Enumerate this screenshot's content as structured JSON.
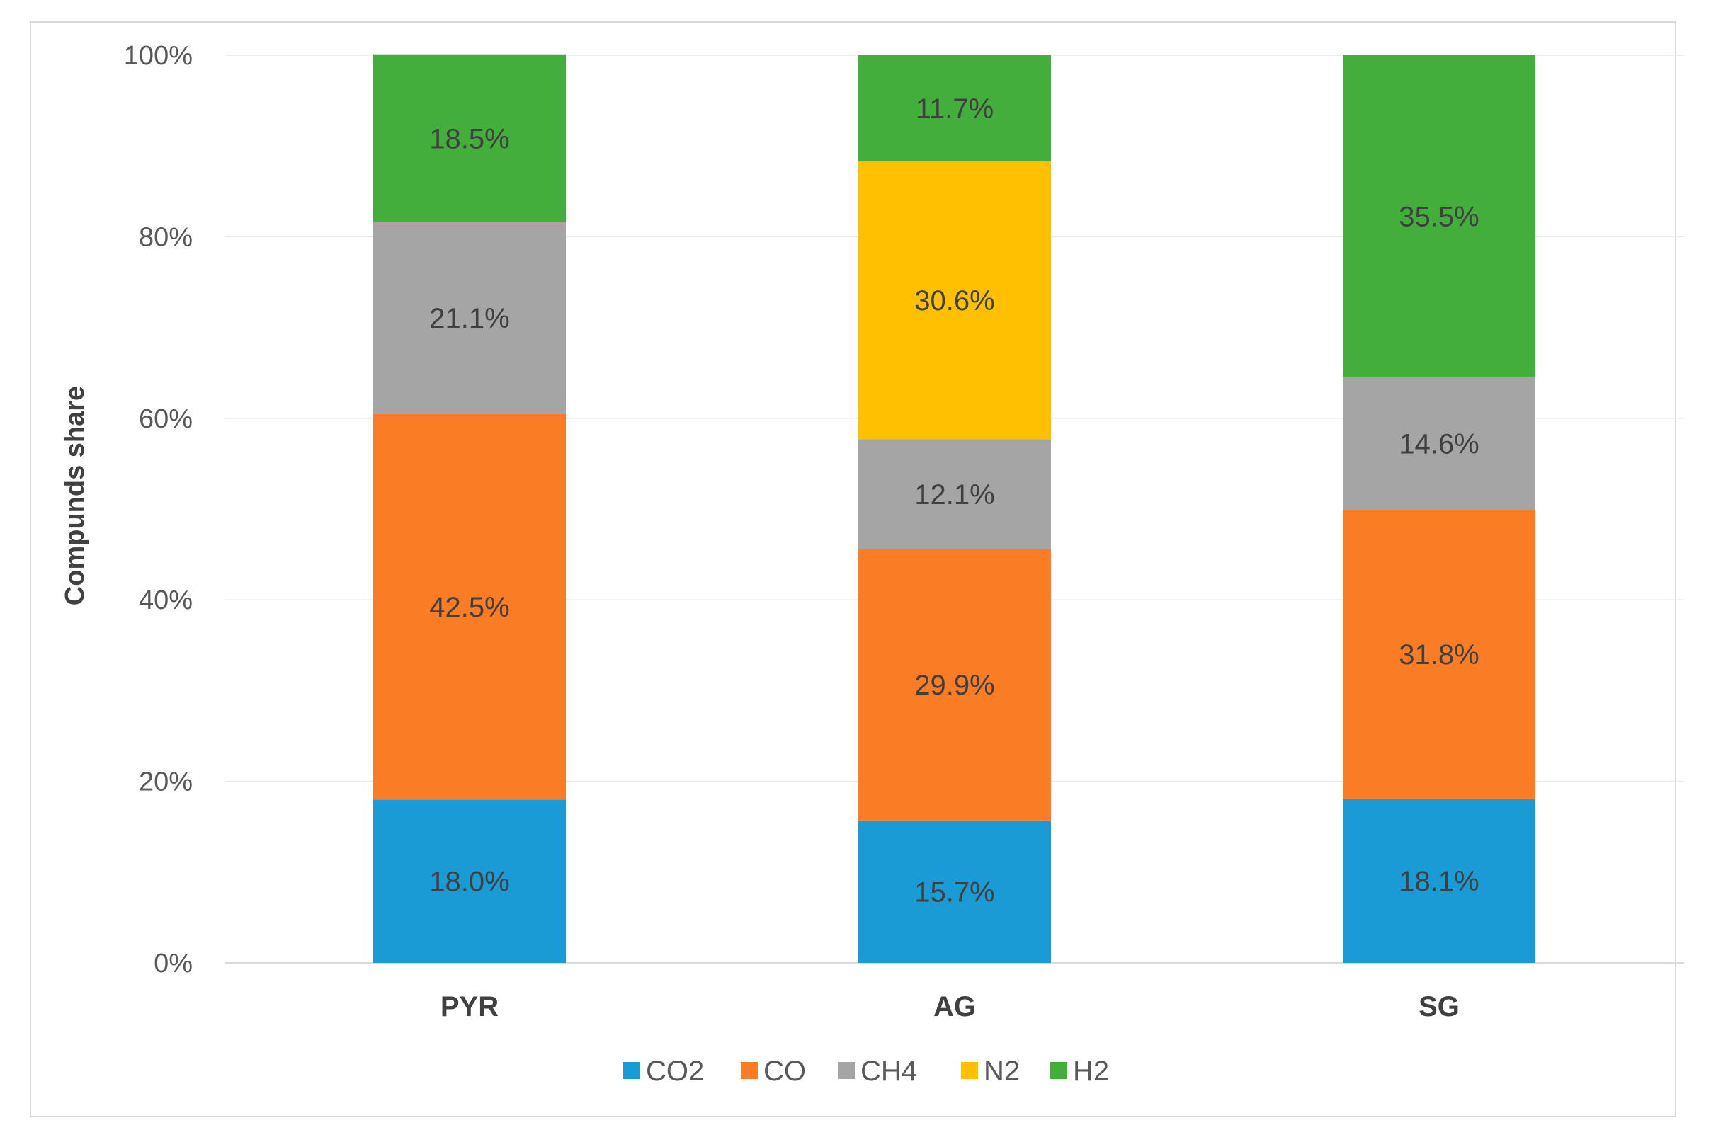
{
  "chart_data": {
    "type": "bar",
    "stacked": true,
    "title": "",
    "xlabel": "",
    "ylabel": "Compunds share",
    "ylim": [
      0,
      100
    ],
    "y_ticks": [
      "0%",
      "20%",
      "40%",
      "60%",
      "80%",
      "100%"
    ],
    "y_tick_values": [
      0,
      20,
      40,
      60,
      80,
      100
    ],
    "categories": [
      "PYR",
      "AG",
      "SG"
    ],
    "legend_position": "bottom",
    "series": [
      {
        "name": "CO2",
        "color": "#1b9bd6",
        "values": [
          18.0,
          15.7,
          18.1
        ],
        "labels": [
          "18.0%",
          "15.7%",
          "18.1%"
        ]
      },
      {
        "name": "CO",
        "color": "#fa7d26",
        "values": [
          42.5,
          29.9,
          31.8
        ],
        "labels": [
          "42.5%",
          "29.9%",
          "31.8%"
        ]
      },
      {
        "name": "CH4",
        "color": "#a5a5a5",
        "values": [
          21.1,
          12.1,
          14.6
        ],
        "labels": [
          "21.1%",
          "12.1%",
          "14.6%"
        ]
      },
      {
        "name": "N2",
        "color": "#fec000",
        "values": [
          0,
          30.6,
          0
        ],
        "labels": [
          "",
          "30.6%",
          ""
        ]
      },
      {
        "name": "H2",
        "color": "#43ae3b",
        "values": [
          18.5,
          11.7,
          35.5
        ],
        "labels": [
          "18.5%",
          "11.7%",
          "35.5%"
        ]
      }
    ]
  }
}
